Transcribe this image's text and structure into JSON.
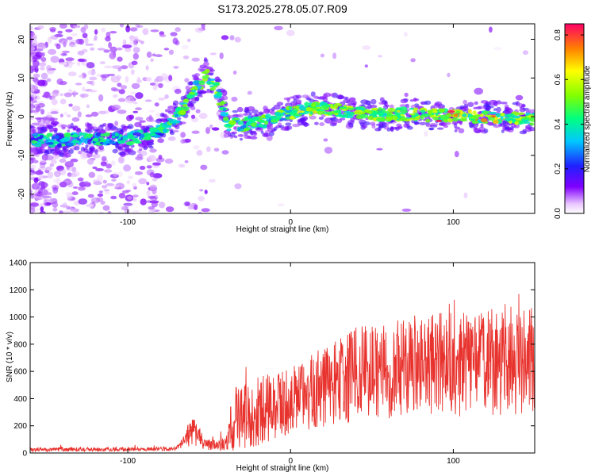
{
  "title": "S173.2025.278.05.07.R09",
  "chart_data": [
    {
      "type": "heatmap",
      "xlabel": "Height of straight line (km)",
      "ylabel": "Frequency (Hz)",
      "xlim": [
        -160,
        150
      ],
      "ylim": [
        -25,
        24
      ],
      "x_ticks": [
        -100,
        0,
        100
      ],
      "y_ticks": [
        -20,
        -10,
        0,
        10,
        20
      ],
      "colorbar": {
        "label": "Normalized spectral amplitude",
        "range": [
          0.0,
          0.85
        ],
        "ticks": [
          "0.0",
          "0.2",
          "0.4",
          "0.6",
          "0.8"
        ]
      },
      "ridge": [
        {
          "x": -160,
          "f": -6
        },
        {
          "x": -130,
          "f": -6
        },
        {
          "x": -100,
          "f": -5.5
        },
        {
          "x": -85,
          "f": -5
        },
        {
          "x": -75,
          "f": -2
        },
        {
          "x": -68,
          "f": 1
        },
        {
          "x": -60,
          "f": 6
        },
        {
          "x": -52,
          "f": 11
        },
        {
          "x": -45,
          "f": 7
        },
        {
          "x": -42,
          "f": 3
        },
        {
          "x": -38,
          "f": -2
        },
        {
          "x": -30,
          "f": -2
        },
        {
          "x": -15,
          "f": -1
        },
        {
          "x": 0,
          "f": 1
        },
        {
          "x": 15,
          "f": 2.2
        },
        {
          "x": 30,
          "f": 1.5
        },
        {
          "x": 50,
          "f": 0.5
        },
        {
          "x": 70,
          "f": 0.6
        },
        {
          "x": 90,
          "f": 0.4
        },
        {
          "x": 110,
          "f": 0.1
        },
        {
          "x": 130,
          "f": -0.3
        },
        {
          "x": 150,
          "f": -0.5
        }
      ]
    },
    {
      "type": "line",
      "xlabel": "Height of straight line (km)",
      "ylabel": "SNR (10 * v/v)",
      "xlim": [
        -160,
        150
      ],
      "ylim": [
        0,
        1400
      ],
      "x_ticks": [
        -100,
        0,
        100
      ],
      "y_ticks": [
        0,
        200,
        400,
        600,
        800,
        1000,
        1200,
        1400
      ],
      "envelope": [
        {
          "x": -160,
          "mean": 25,
          "spread": 15
        },
        {
          "x": -70,
          "mean": 30,
          "spread": 15
        },
        {
          "x": -60,
          "mean": 170,
          "spread": 110
        },
        {
          "x": -52,
          "mean": 60,
          "spread": 40
        },
        {
          "x": -40,
          "mean": 60,
          "spread": 50
        },
        {
          "x": -35,
          "mean": 250,
          "spread": 250
        },
        {
          "x": 0,
          "mean": 380,
          "spread": 250
        },
        {
          "x": 40,
          "mean": 580,
          "spread": 350
        },
        {
          "x": 80,
          "mean": 640,
          "spread": 380
        },
        {
          "x": 150,
          "mean": 680,
          "spread": 420
        }
      ],
      "color": "#e8322d"
    }
  ]
}
